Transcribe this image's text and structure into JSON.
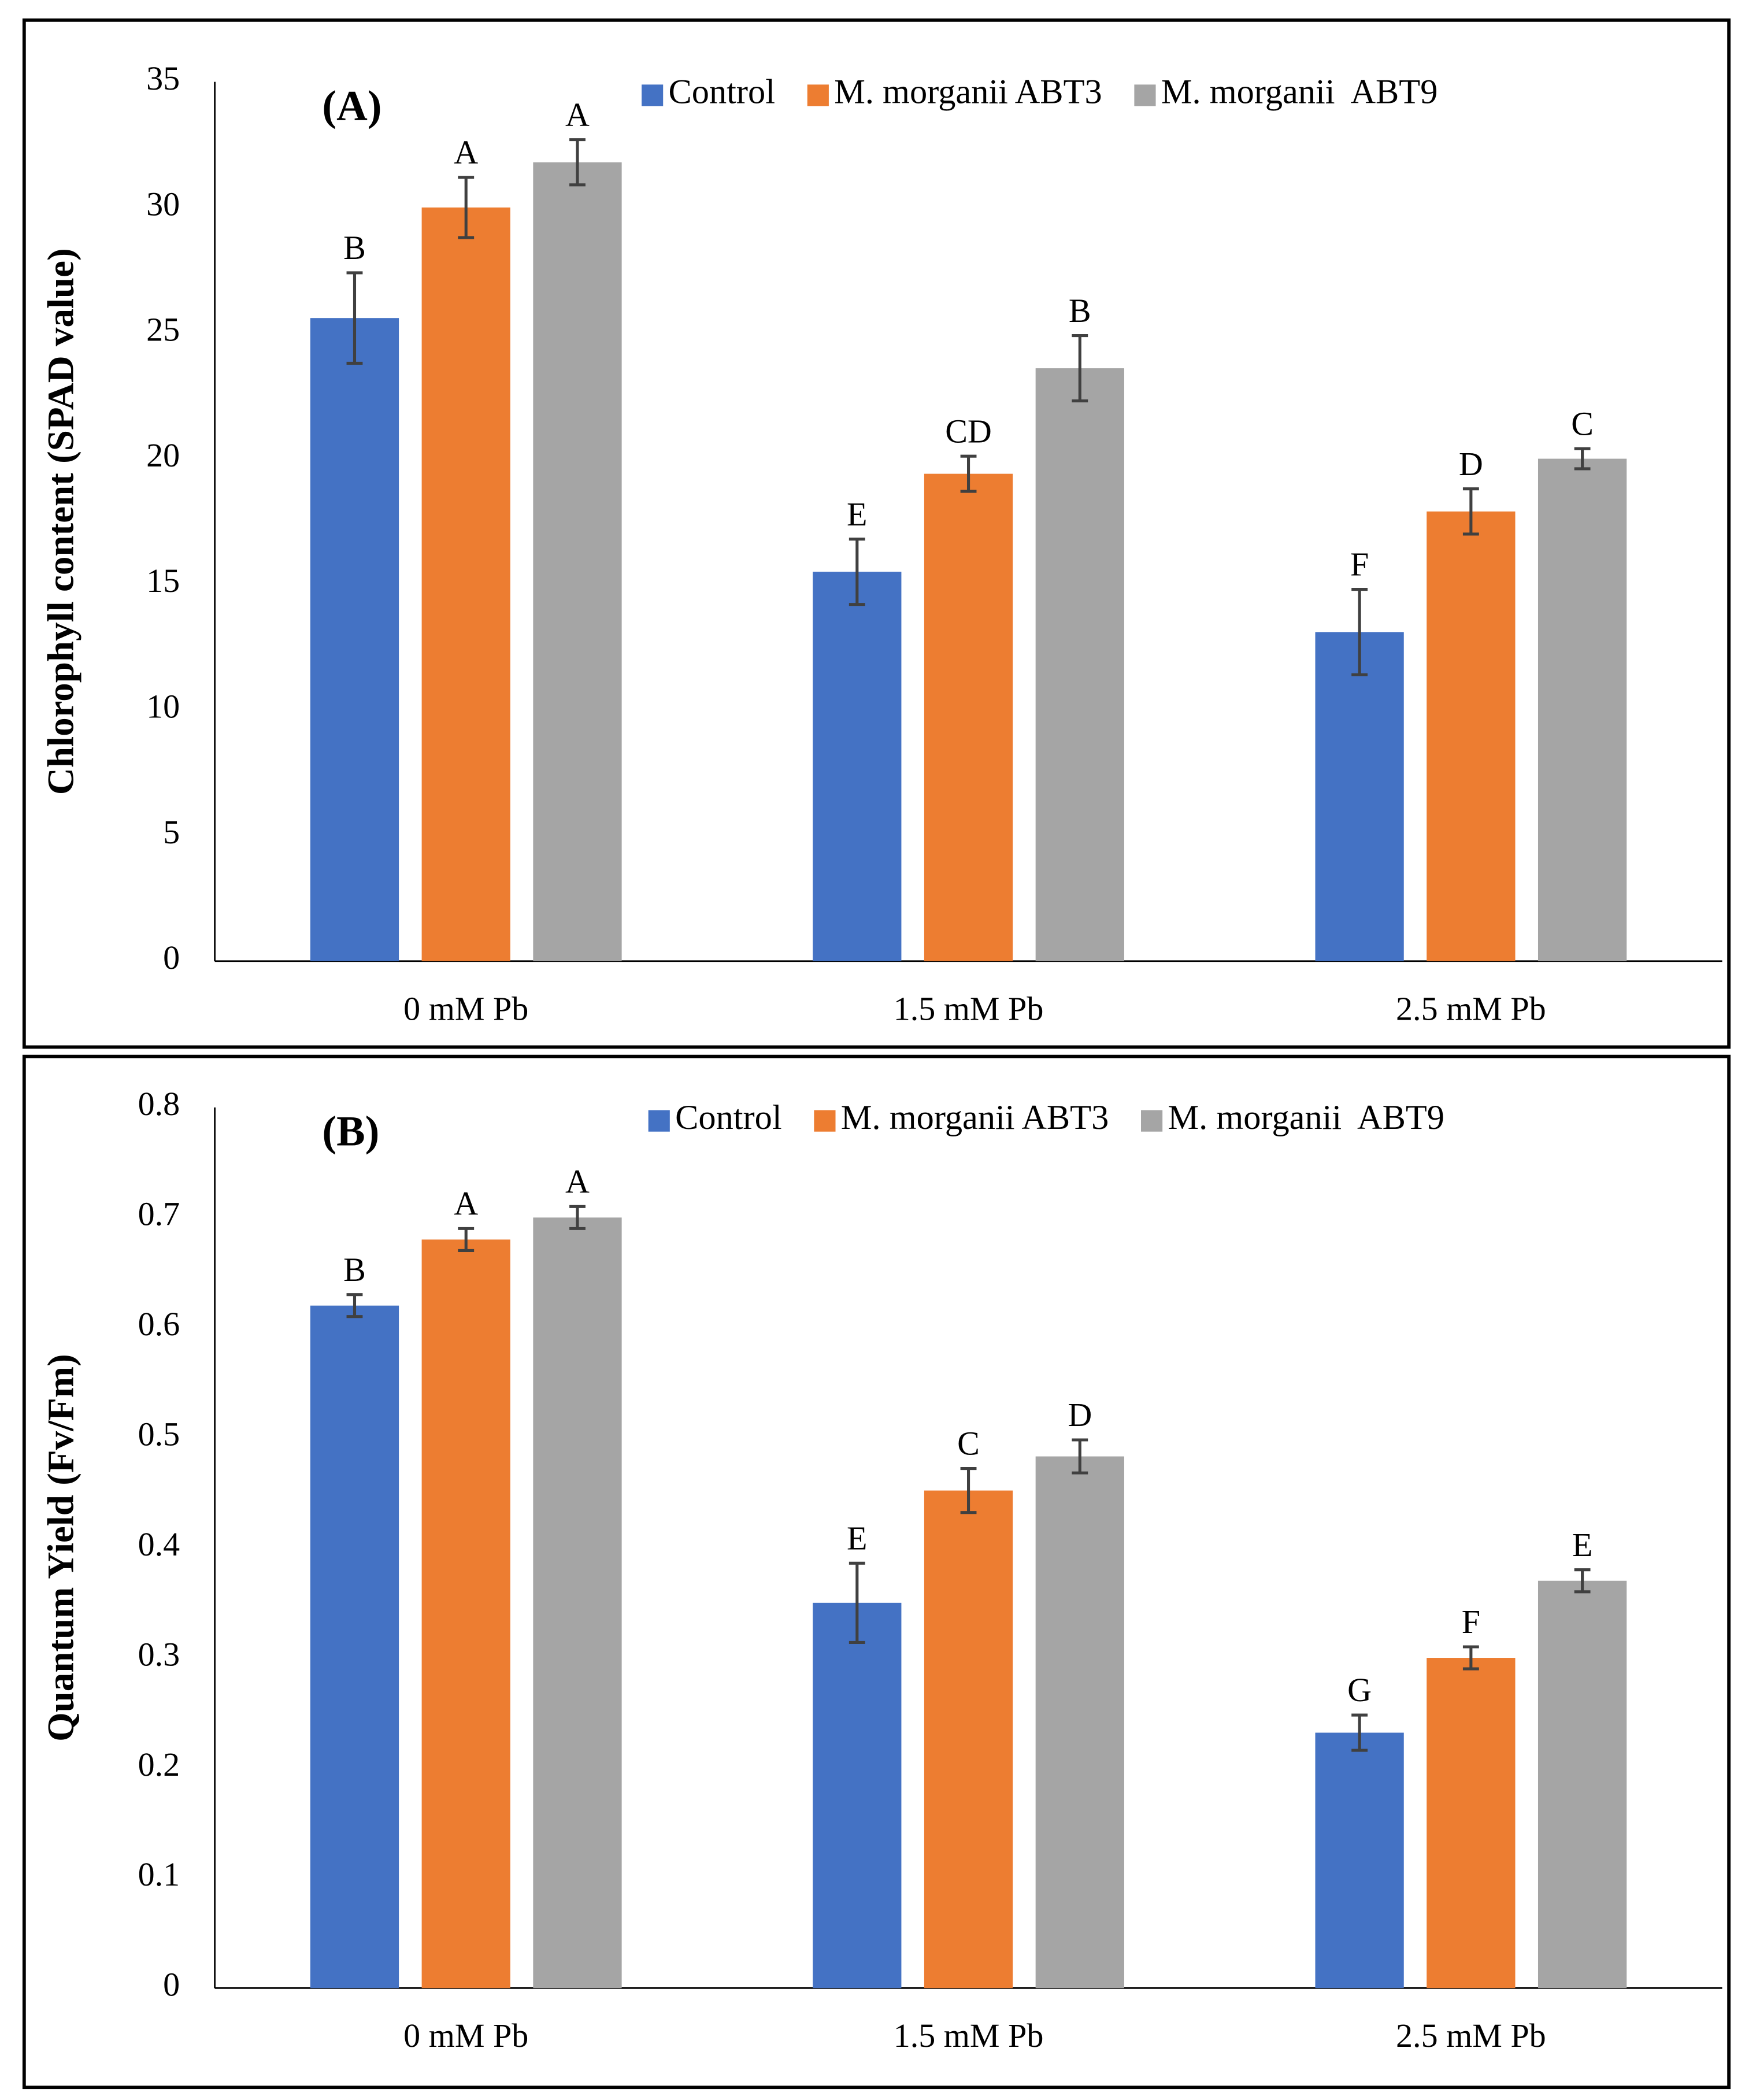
{
  "chart_data": [
    {
      "type": "bar",
      "panel_label": "(A)",
      "y_label": "Chlorophyll content (SPAD value)",
      "categories": [
        "0 mM Pb",
        "1.5 mM Pb",
        "2.5 mM Pb"
      ],
      "series": [
        {
          "name": "Control",
          "color": "#4472c4",
          "values": [
            25.6,
            15.5,
            13.1
          ],
          "errors": [
            1.8,
            1.3,
            1.7
          ],
          "letters": [
            "B",
            "E",
            "F"
          ]
        },
        {
          "name": "M. morganii ABT3",
          "color": "#ed7d31",
          "values": [
            30.0,
            19.4,
            17.9
          ],
          "errors": [
            1.2,
            0.7,
            0.9
          ],
          "letters": [
            "A",
            "CD",
            "D"
          ]
        },
        {
          "name": "M. morganii  ABT9",
          "color": "#a5a5a5",
          "values": [
            31.8,
            23.6,
            20.0
          ],
          "errors": [
            0.9,
            1.3,
            0.4
          ],
          "letters": [
            "A",
            "B",
            "C"
          ]
        }
      ],
      "ylim": [
        0,
        35
      ],
      "yticks": [
        0,
        5,
        10,
        15,
        20,
        25,
        30,
        35
      ],
      "grid": false
    },
    {
      "type": "bar",
      "panel_label": "(B)",
      "y_label": "Quantum Yield (Fv/Fm)",
      "categories": [
        "0 mM Pb",
        "1.5 mM Pb",
        "2.5 mM Pb"
      ],
      "series": [
        {
          "name": "Control",
          "color": "#4472c4",
          "values": [
            0.62,
            0.35,
            0.232
          ],
          "errors": [
            0.01,
            0.036,
            0.016
          ],
          "letters": [
            "B",
            "E",
            "G"
          ]
        },
        {
          "name": "M. morganii ABT3",
          "color": "#ed7d31",
          "values": [
            0.68,
            0.452,
            0.3
          ],
          "errors": [
            0.01,
            0.02,
            0.01
          ],
          "letters": [
            "A",
            "C",
            "F"
          ]
        },
        {
          "name": "M. morganii  ABT9",
          "color": "#a5a5a5",
          "values": [
            0.7,
            0.483,
            0.37
          ],
          "errors": [
            0.01,
            0.015,
            0.01
          ],
          "letters": [
            "A",
            "D",
            "E"
          ]
        }
      ],
      "ylim": [
        0,
        0.8
      ],
      "yticks": [
        0,
        0.1,
        0.2,
        0.3,
        0.4,
        0.5,
        0.6,
        0.7,
        0.8
      ],
      "grid": false
    }
  ]
}
